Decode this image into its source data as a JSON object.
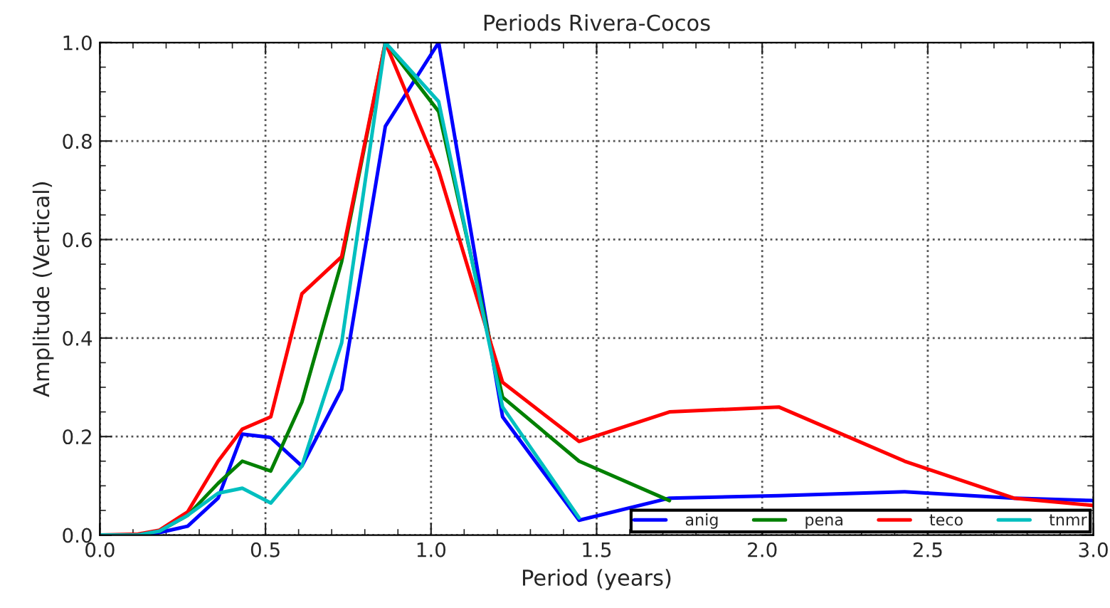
{
  "chart_data": {
    "type": "line",
    "title": "Periods Rivera-Cocos",
    "xlabel": "Period (years)",
    "ylabel": "Amplitude (Vertical)",
    "x": [
      0.0,
      0.115,
      0.18,
      0.265,
      0.357,
      0.43,
      0.516,
      0.61,
      0.73,
      0.862,
      1.023,
      1.216,
      1.447,
      1.72,
      2.05,
      2.43,
      2.76,
      3.0
    ],
    "series": [
      {
        "name": "anig",
        "color": "#0000ff",
        "values": [
          0.0,
          0.0,
          0.005,
          0.018,
          0.075,
          0.205,
          0.198,
          0.14,
          0.296,
          0.83,
          1.0,
          0.24,
          0.03,
          0.075,
          0.08,
          0.088,
          0.075,
          0.07
        ]
      },
      {
        "name": "pena",
        "color": "#008000",
        "values": [
          null,
          null,
          0.008,
          0.04,
          0.105,
          0.15,
          0.13,
          0.27,
          0.555,
          1.0,
          0.86,
          0.28,
          0.15,
          0.07,
          null,
          null,
          null,
          null
        ]
      },
      {
        "name": "teco",
        "color": "#ff0000",
        "values": [
          0.0,
          0.002,
          0.01,
          0.047,
          0.15,
          0.215,
          0.24,
          0.49,
          0.565,
          1.0,
          0.74,
          0.31,
          0.19,
          0.25,
          0.26,
          0.15,
          0.075,
          0.06
        ]
      },
      {
        "name": "tnmr",
        "color": "#00bfbf",
        "values": [
          0.0,
          0.0,
          0.008,
          0.04,
          0.085,
          0.095,
          0.065,
          0.14,
          0.39,
          1.0,
          0.88,
          0.26,
          0.035,
          null,
          null,
          null,
          null,
          null
        ]
      }
    ],
    "xlim": [
      0.0,
      3.0
    ],
    "xticks": [
      {
        "value": 0.0,
        "label": "0.0"
      },
      0.5,
      {
        "value": 1.0,
        "label": "1.0"
      },
      1.5,
      {
        "value": 2.0,
        "label": "2.0"
      },
      2.5,
      {
        "value": 3.0,
        "label": "3.0"
      }
    ],
    "ylim": [
      0.0,
      1.0
    ],
    "yticks": [
      {
        "value": 0.0,
        "label": "0.0"
      },
      0.2,
      0.4,
      0.6,
      0.8,
      {
        "value": 1.0,
        "label": "1.0"
      }
    ],
    "grid": true,
    "legend": "bottom right",
    "line_style": "solid"
  }
}
